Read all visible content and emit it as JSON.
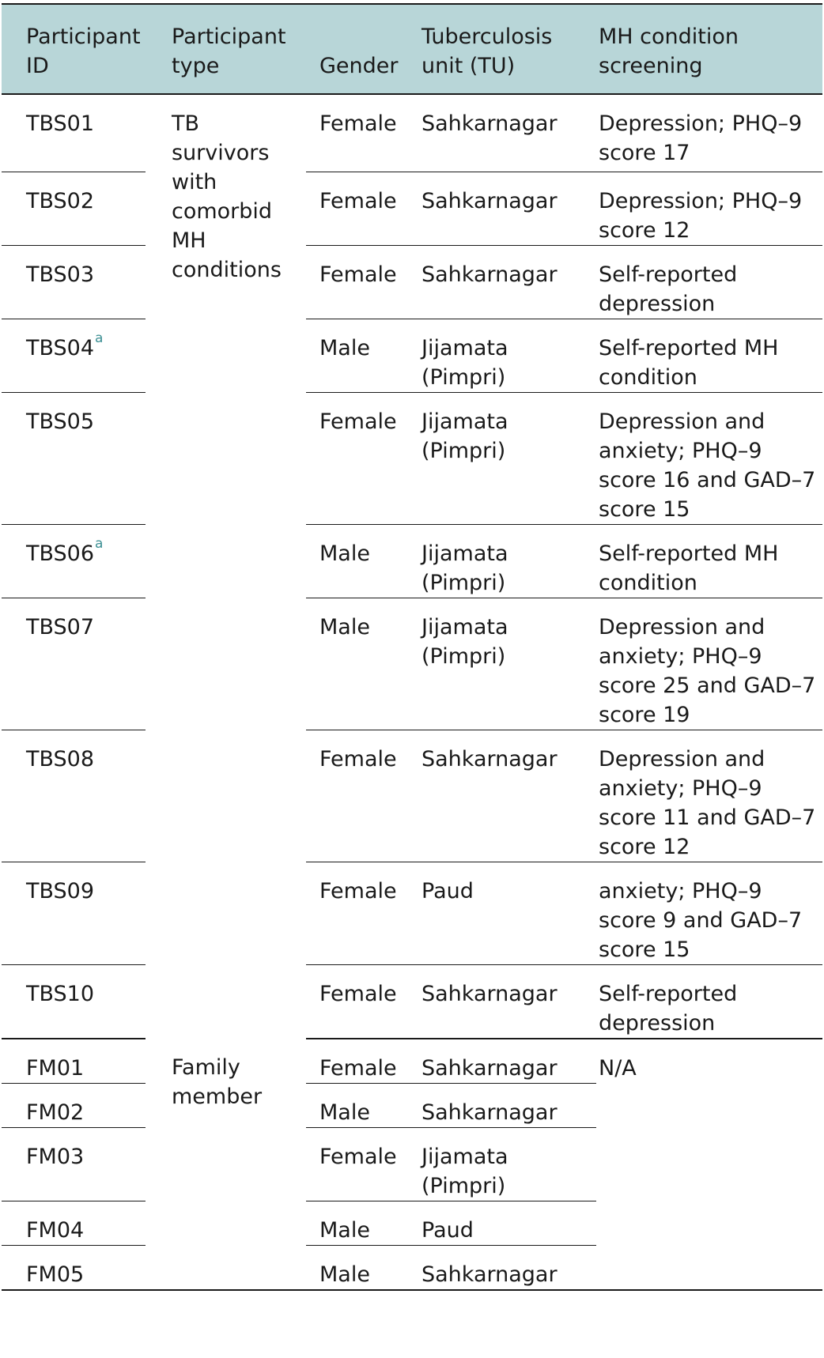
{
  "headers": {
    "participant_id": "Participant ID",
    "participant_type": "Participant type",
    "gender": "Gender",
    "tu": "Tuberculosis unit (TU)",
    "mh": "MH condition screening"
  },
  "groups": {
    "tb_survivors": "TB survivors with comorbid MH conditions",
    "family": "Family member",
    "family_mh": "N/A"
  },
  "footnote_marker": "a",
  "rows": [
    {
      "id": "TBS01",
      "gender": "Female",
      "tu": "Sahkarnagar",
      "mh": "Depression; PHQ–9 score 17"
    },
    {
      "id": "TBS02",
      "gender": "Female",
      "tu": "Sahkarnagar",
      "mh": "Depression; PHQ–9 score 12"
    },
    {
      "id": "TBS03",
      "gender": "Female",
      "tu": "Sahkarnagar",
      "mh": "Self-reported depression"
    },
    {
      "id": "TBS04",
      "gender": "Male",
      "tu": "Jijamata (Pimpri)",
      "mh": "Self-reported MH condition"
    },
    {
      "id": "TBS05",
      "gender": "Female",
      "tu": "Jijamata (Pimpri)",
      "mh": "Depression and anxiety; PHQ–9 score 16 and GAD–7 score 15"
    },
    {
      "id": "TBS06",
      "gender": "Male",
      "tu": "Jijamata (Pimpri)",
      "mh": "Self-reported MH condition"
    },
    {
      "id": "TBS07",
      "gender": "Male",
      "tu": "Jijamata (Pimpri)",
      "mh": "Depression and anxiety; PHQ–9 score 25 and GAD–7 score 19"
    },
    {
      "id": "TBS08",
      "gender": "Female",
      "tu": "Sahkarnagar",
      "mh": "Depression and anxiety; PHQ–9 score 11 and GAD–7 score 12"
    },
    {
      "id": "TBS09",
      "gender": "Female",
      "tu": "Paud",
      "mh": "anxiety; PHQ–9 score 9 and GAD–7 score 15"
    },
    {
      "id": "TBS10",
      "gender": "Female",
      "tu": "Sahkarnagar",
      "mh": "Self-reported depression"
    },
    {
      "id": "FM01",
      "gender": "Female",
      "tu": "Sahkarnagar"
    },
    {
      "id": "FM02",
      "gender": "Male",
      "tu": "Sahkarnagar"
    },
    {
      "id": "FM03",
      "gender": "Female",
      "tu": "Jijamata (Pimpri)"
    },
    {
      "id": "FM04",
      "gender": "Male",
      "tu": "Paud"
    },
    {
      "id": "FM05",
      "gender": "Male",
      "tu": "Sahkarnagar"
    }
  ]
}
